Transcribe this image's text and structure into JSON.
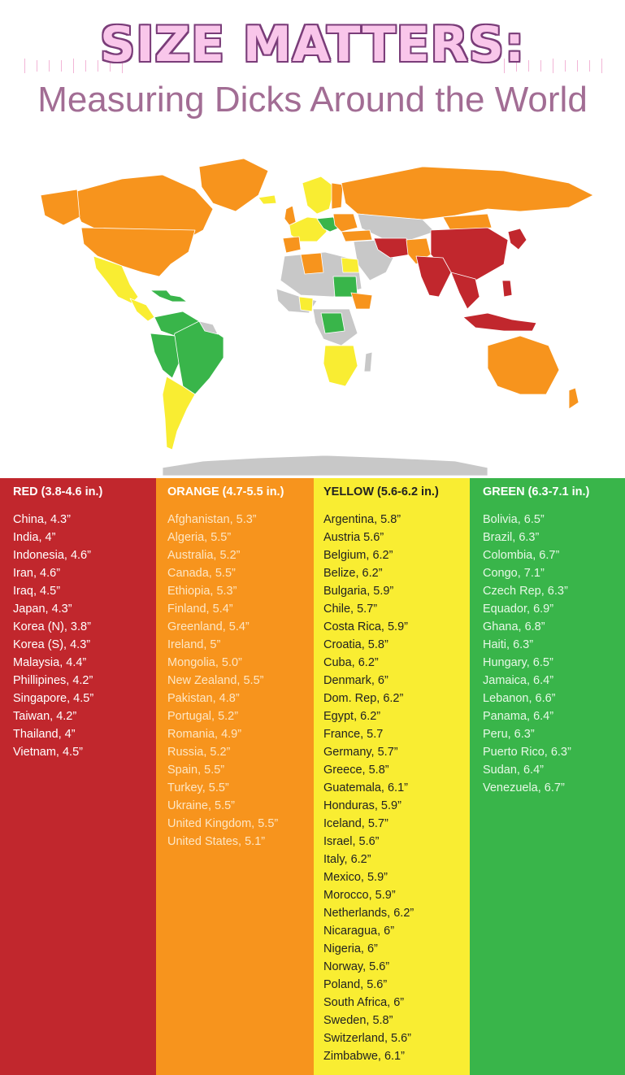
{
  "header": {
    "title": "SIZE MATTERS:",
    "subtitle": "Measuring Dicks Around the World"
  },
  "colors": {
    "red": "#c1272d",
    "orange": "#f7941d",
    "yellow": "#f9ed32",
    "green": "#39b54a",
    "no_data": "#c8c8c8",
    "title_pink": "#f9c6ea",
    "subtitle_mauve": "#a26d94"
  },
  "legend": [
    {
      "key": "red",
      "title": "RED (3.8-4.6 in.)",
      "items": [
        "China, 4.3”",
        "India, 4”",
        "Indonesia, 4.6”",
        "Iran, 4.6”",
        "Iraq, 4.5”",
        "Japan, 4.3”",
        "Korea (N), 3.8”",
        "Korea (S), 4.3”",
        "Malaysia, 4.4”",
        "Phillipines, 4.2”",
        "Singapore, 4.5”",
        "Taiwan, 4.2”",
        "Thailand, 4”",
        "Vietnam, 4.5”"
      ]
    },
    {
      "key": "orange",
      "title": "ORANGE (4.7-5.5 in.)",
      "items": [
        "Afghanistan, 5.3”",
        "Algeria, 5.5”",
        "Australia, 5.2”",
        "Canada, 5.5”",
        "Ethiopia, 5.3”",
        "Finland, 5.4”",
        "Greenland, 5.4”",
        "Ireland, 5”",
        "Mongolia, 5.0”",
        "New Zealand, 5.5”",
        "Pakistan, 4.8”",
        "Portugal, 5.2”",
        "Romania, 4.9”",
        "Russia, 5.2”",
        "Spain, 5.5”",
        "Turkey, 5.5”",
        "Ukraine, 5.5”",
        "United Kingdom, 5.5”",
        "United States, 5.1”"
      ]
    },
    {
      "key": "yellow",
      "title": "YELLOW (5.6-6.2 in.)",
      "items": [
        "Argentina, 5.8”",
        "Austria 5.6”",
        "Belgium, 6.2”",
        "Belize, 6.2”",
        "Bulgaria, 5.9”",
        "Chile, 5.7”",
        "Costa Rica, 5.9”",
        "Croatia, 5.8”",
        "Cuba, 6.2”",
        "Denmark, 6”",
        "Dom. Rep, 6.2”",
        "Egypt, 6.2”",
        "France, 5.7",
        "Germany, 5.7”",
        "Greece, 5.8”",
        "Guatemala, 6.1”",
        "Honduras, 5.9”",
        "Iceland, 5.7”",
        "Israel, 5.6”",
        "Italy, 6.2”",
        "Mexico, 5.9”",
        "Morocco, 5.9”",
        "Netherlands, 6.2”",
        "Nicaragua, 6”",
        "Nigeria, 6”",
        "Norway, 5.6”",
        "Poland, 5.6”",
        "South Africa, 6”",
        "Sweden, 5.8”",
        "Switzerland, 5.6”",
        "Zimbabwe, 6.1”"
      ]
    },
    {
      "key": "green",
      "title": "GREEN (6.3-7.1 in.)",
      "items": [
        "Bolivia, 6.5”",
        "Brazil, 6.3”",
        "Colombia, 6.7”",
        "Congo, 7.1”",
        "Czech Rep, 6.3”",
        "Equador, 6.9”",
        "Ghana, 6.8”",
        "Haiti, 6.3”",
        "Hungary, 6.5”",
        "Jamaica, 6.4”",
        "Lebanon, 6.6”",
        "Panama, 6.4”",
        "Peru, 6.3”",
        "Puerto Rico, 6.3”",
        "Sudan, 6.4”",
        "Venezuela, 6.7”"
      ]
    }
  ]
}
